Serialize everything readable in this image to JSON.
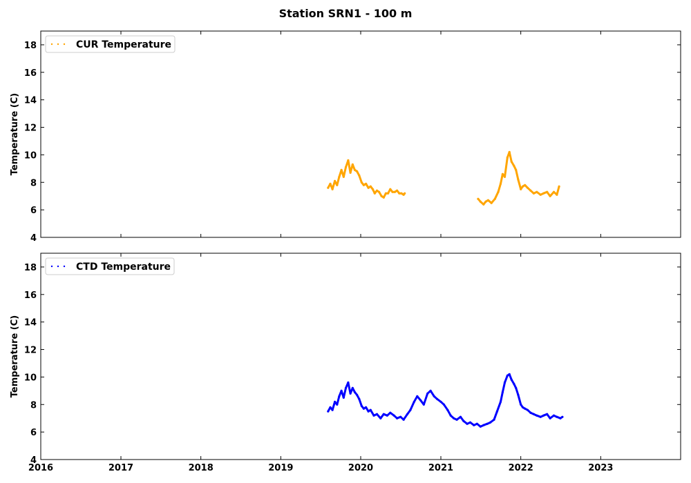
{
  "figure": {
    "title": "Station SRN1 - 100 m"
  },
  "chart_data": [
    {
      "type": "line",
      "legend_position": "top-left",
      "ylabel": "Temperature (C)",
      "xlabel": "",
      "xlim": [
        "2016-01-01",
        "2024-01-01"
      ],
      "ylim": [
        4,
        19
      ],
      "yticks": [
        4,
        6,
        8,
        10,
        12,
        14,
        16,
        18
      ],
      "xticks": [],
      "grid": false,
      "series": [
        {
          "name": "CUR Temperature",
          "color": "#ffa500",
          "style": "dotted",
          "segments": [
            {
              "x": [
                "2019-08-05",
                "2019-08-15",
                "2019-08-25",
                "2019-09-05",
                "2019-09-15",
                "2019-09-25",
                "2019-10-05",
                "2019-10-15",
                "2019-10-25",
                "2019-11-05",
                "2019-11-15",
                "2019-11-25",
                "2019-12-05",
                "2019-12-15",
                "2019-12-25",
                "2020-01-05",
                "2020-01-15",
                "2020-01-25",
                "2020-02-05",
                "2020-02-15",
                "2020-02-25",
                "2020-03-05",
                "2020-03-15",
                "2020-03-25",
                "2020-04-05",
                "2020-04-15",
                "2020-04-25",
                "2020-05-05",
                "2020-05-15",
                "2020-05-25",
                "2020-06-05",
                "2020-06-15",
                "2020-06-25",
                "2020-07-05",
                "2020-07-15",
                "2020-07-20"
              ],
              "y": [
                7.6,
                7.9,
                7.5,
                8.1,
                7.8,
                8.4,
                8.9,
                8.4,
                9.1,
                9.6,
                8.7,
                9.3,
                8.9,
                8.8,
                8.5,
                8.0,
                7.8,
                7.9,
                7.6,
                7.7,
                7.5,
                7.2,
                7.4,
                7.3,
                7.0,
                6.9,
                7.2,
                7.2,
                7.5,
                7.3,
                7.3,
                7.4,
                7.2,
                7.2,
                7.1,
                7.2
              ]
            },
            {
              "x": [
                "2021-06-20",
                "2021-07-01",
                "2021-07-15",
                "2021-07-25",
                "2021-08-05",
                "2021-08-20",
                "2021-09-05",
                "2021-09-20",
                "2021-10-01",
                "2021-10-10",
                "2021-10-20",
                "2021-11-01",
                "2021-11-10",
                "2021-11-20",
                "2021-12-01",
                "2021-12-10",
                "2021-12-20",
                "2022-01-01",
                "2022-01-10",
                "2022-01-20",
                "2022-02-01",
                "2022-02-15",
                "2022-03-01",
                "2022-03-15",
                "2022-04-01",
                "2022-04-15",
                "2022-05-01",
                "2022-05-15",
                "2022-06-01",
                "2022-06-15",
                "2022-06-25"
              ],
              "y": [
                6.8,
                6.6,
                6.4,
                6.6,
                6.7,
                6.5,
                6.8,
                7.3,
                7.9,
                8.6,
                8.4,
                9.8,
                10.2,
                9.5,
                9.2,
                8.9,
                8.2,
                7.5,
                7.7,
                7.8,
                7.6,
                7.4,
                7.2,
                7.3,
                7.1,
                7.2,
                7.3,
                7.0,
                7.3,
                7.1,
                7.7
              ]
            }
          ]
        }
      ]
    },
    {
      "type": "line",
      "legend_position": "top-left",
      "ylabel": "Temperature (C)",
      "xlabel": "",
      "xlim": [
        "2016-01-01",
        "2024-01-01"
      ],
      "ylim": [
        4,
        19
      ],
      "yticks": [
        4,
        6,
        8,
        10,
        12,
        14,
        16,
        18
      ],
      "xticks": [
        "2016",
        "2017",
        "2018",
        "2019",
        "2020",
        "2021",
        "2022",
        "2023"
      ],
      "grid": false,
      "series": [
        {
          "name": "CTD Temperature",
          "color": "#0000ff",
          "style": "dotted",
          "segments": [
            {
              "x": [
                "2019-08-05",
                "2019-08-15",
                "2019-08-25",
                "2019-09-05",
                "2019-09-15",
                "2019-09-25",
                "2019-10-05",
                "2019-10-15",
                "2019-10-25",
                "2019-11-05",
                "2019-11-15",
                "2019-11-25",
                "2019-12-05",
                "2019-12-15",
                "2019-12-25",
                "2020-01-05",
                "2020-01-15",
                "2020-01-25",
                "2020-02-05",
                "2020-02-15",
                "2020-03-01",
                "2020-03-15",
                "2020-04-01",
                "2020-04-15",
                "2020-05-01",
                "2020-05-15",
                "2020-06-01",
                "2020-06-15",
                "2020-07-01",
                "2020-07-15",
                "2020-08-01",
                "2020-08-15",
                "2020-09-01",
                "2020-09-15",
                "2020-10-01",
                "2020-10-15",
                "2020-11-01",
                "2020-11-15",
                "2020-12-01",
                "2020-12-15",
                "2021-01-01",
                "2021-01-15",
                "2021-02-01",
                "2021-02-15",
                "2021-03-01",
                "2021-03-15",
                "2021-04-01",
                "2021-04-15",
                "2021-05-01",
                "2021-05-15",
                "2021-06-01",
                "2021-06-15",
                "2021-07-01",
                "2021-07-15",
                "2021-08-01",
                "2021-08-15",
                "2021-09-01",
                "2021-09-15",
                "2021-10-01",
                "2021-10-10",
                "2021-10-20",
                "2021-11-01",
                "2021-11-10",
                "2021-11-20",
                "2021-12-01",
                "2021-12-10",
                "2021-12-20",
                "2022-01-01",
                "2022-01-10",
                "2022-01-20",
                "2022-02-01",
                "2022-02-15",
                "2022-03-01",
                "2022-03-15",
                "2022-04-01",
                "2022-04-15",
                "2022-05-01",
                "2022-05-15",
                "2022-06-01",
                "2022-06-15",
                "2022-07-01",
                "2022-07-10"
              ],
              "y": [
                7.5,
                7.8,
                7.6,
                8.2,
                8.0,
                8.6,
                9.0,
                8.5,
                9.2,
                9.6,
                8.8,
                9.2,
                8.9,
                8.7,
                8.4,
                7.9,
                7.7,
                7.8,
                7.5,
                7.6,
                7.2,
                7.3,
                7.0,
                7.3,
                7.2,
                7.4,
                7.2,
                7.0,
                7.1,
                6.9,
                7.3,
                7.6,
                8.2,
                8.6,
                8.3,
                8.0,
                8.8,
                9.0,
                8.6,
                8.4,
                8.2,
                8.0,
                7.6,
                7.2,
                7.0,
                6.9,
                7.1,
                6.8,
                6.6,
                6.7,
                6.5,
                6.6,
                6.4,
                6.5,
                6.6,
                6.7,
                6.9,
                7.5,
                8.2,
                8.9,
                9.6,
                10.1,
                10.2,
                9.8,
                9.5,
                9.2,
                8.7,
                8.0,
                7.8,
                7.7,
                7.6,
                7.4,
                7.3,
                7.2,
                7.1,
                7.2,
                7.3,
                7.0,
                7.2,
                7.1,
                7.0,
                7.1
              ]
            }
          ]
        }
      ]
    }
  ]
}
